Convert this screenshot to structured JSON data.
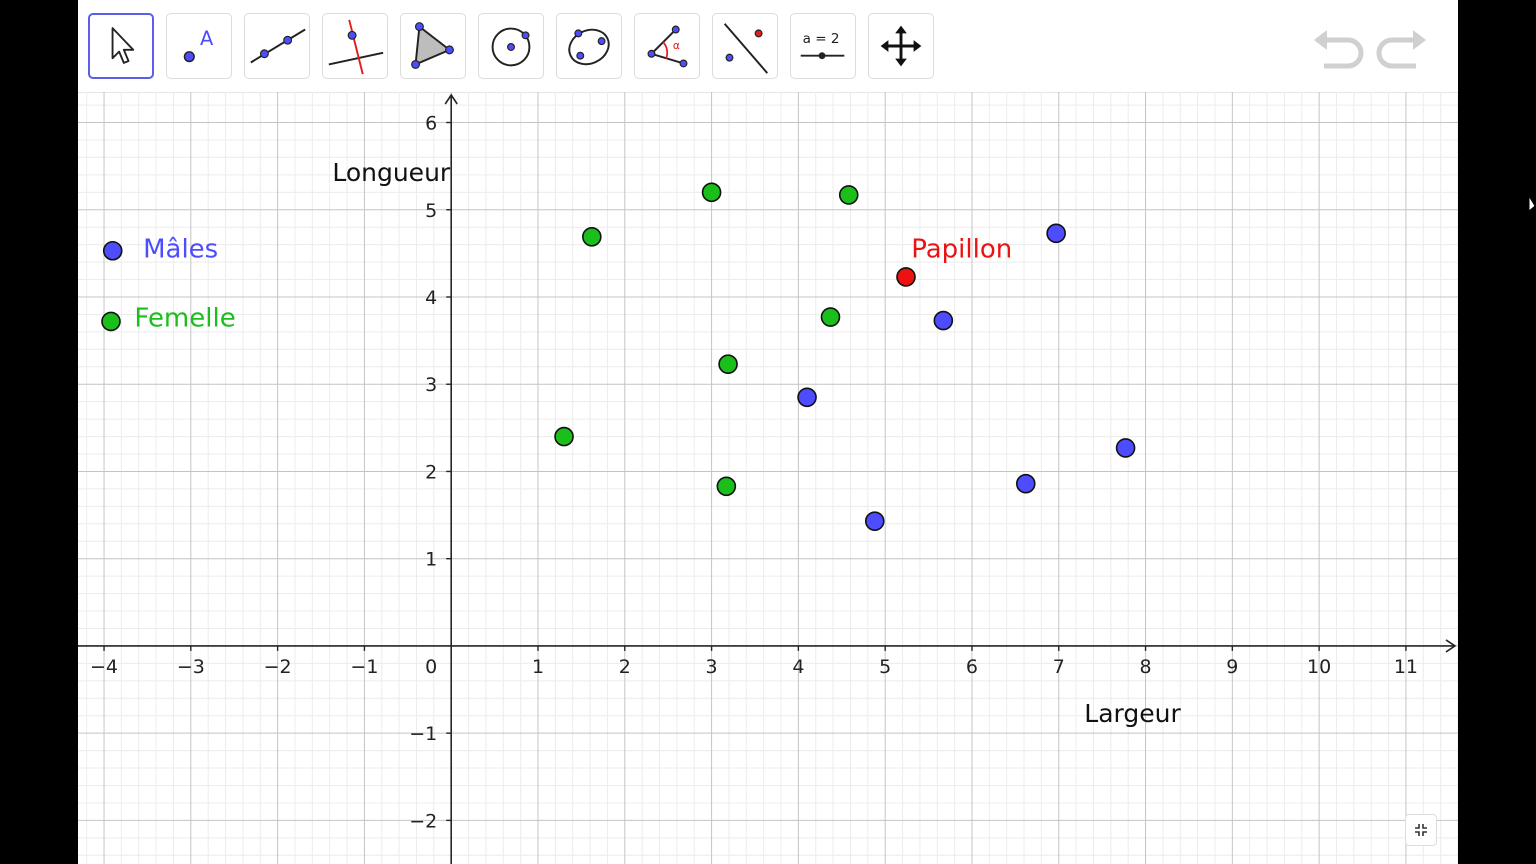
{
  "toolbar": {
    "tools": [
      {
        "name": "move-tool",
        "icon": "pointer-arrow-icon",
        "active": true
      },
      {
        "name": "point-tool",
        "icon": "point-a-icon",
        "glyph": "A"
      },
      {
        "name": "line-tool",
        "icon": "line-through-points-icon"
      },
      {
        "name": "perpendicular-line-tool",
        "icon": "perpendicular-line-icon"
      },
      {
        "name": "polygon-tool",
        "icon": "polygon-icon"
      },
      {
        "name": "circle-tool",
        "icon": "circle-center-point-icon"
      },
      {
        "name": "conic-tool",
        "icon": "ellipse-icon"
      },
      {
        "name": "angle-tool",
        "icon": "angle-icon",
        "glyph": "α"
      },
      {
        "name": "reflect-tool",
        "icon": "reflect-about-line-icon"
      },
      {
        "name": "slider-tool",
        "icon": "slider-icon",
        "glyph": "a = 2"
      },
      {
        "name": "move-graphics-tool",
        "icon": "move-arrows-icon"
      }
    ],
    "undo_icon": "undo-icon",
    "redo_icon": "redo-icon"
  },
  "axes": {
    "xlabel": "Largeur",
    "ylabel": "Longueur",
    "origin_label": "0",
    "xlim": [
      -4.3,
      11.6
    ],
    "ylim": [
      -2.5,
      6.35
    ],
    "x_ticks": [
      "-4",
      "-3",
      "-2",
      "-1",
      "1",
      "2",
      "3",
      "4",
      "5",
      "6",
      "7",
      "8",
      "9",
      "10",
      "11"
    ],
    "y_ticks": [
      "-2",
      "-1",
      "1",
      "2",
      "3",
      "4",
      "5",
      "6"
    ],
    "grid": true,
    "minor_grid_divisions": 5
  },
  "colors": {
    "male": "#4d4dff",
    "female": "#1bbf1b",
    "papillon": "#ee1111",
    "axis": "#262626",
    "grid_major": "#c4c4c4",
    "grid_minor": "#ececec"
  },
  "legend": {
    "male_label": "Mâles",
    "female_label": "Femelle",
    "papillon_label": "Papillon"
  },
  "chart_data": {
    "type": "scatter",
    "xlabel": "Largeur",
    "ylabel": "Longueur",
    "xlim": [
      -4.3,
      11.6
    ],
    "ylim": [
      -2.5,
      6.35
    ],
    "grid": true,
    "series": [
      {
        "name": "Mâles",
        "color": "#4d4dff",
        "points": [
          [
            4.1,
            2.85
          ],
          [
            4.88,
            1.43
          ],
          [
            5.67,
            3.73
          ],
          [
            6.62,
            1.86
          ],
          [
            6.97,
            4.73
          ],
          [
            7.77,
            2.27
          ]
        ]
      },
      {
        "name": "Femelle",
        "color": "#1bbf1b",
        "points": [
          [
            1.3,
            2.4
          ],
          [
            1.62,
            4.69
          ],
          [
            3.0,
            5.2
          ],
          [
            3.17,
            1.83
          ],
          [
            3.19,
            3.23
          ],
          [
            4.37,
            3.77
          ],
          [
            4.58,
            5.17
          ]
        ]
      },
      {
        "name": "Papillon",
        "color": "#ee1111",
        "points": [
          [
            5.24,
            4.23
          ]
        ]
      }
    ],
    "legend_markers": [
      {
        "name": "Mâles",
        "color": "#4d4dff",
        "point": [
          -3.9,
          4.53
        ]
      },
      {
        "name": "Femelle",
        "color": "#1bbf1b",
        "point": [
          -3.92,
          3.72
        ]
      }
    ]
  }
}
